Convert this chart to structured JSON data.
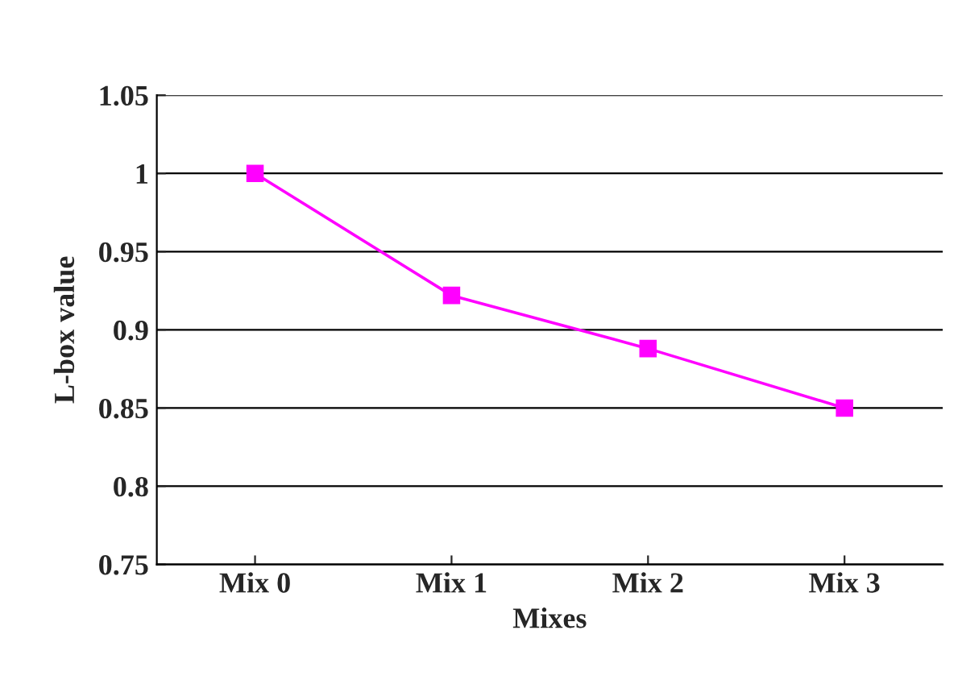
{
  "chart_data": {
    "type": "line",
    "xlabel": "Mixes",
    "ylabel": "L-box value",
    "categories": [
      "Mix 0",
      "Mix 1",
      "Mix 2",
      "Mix 3"
    ],
    "series": [
      {
        "color": "#ff00ff",
        "values": [
          1.0,
          0.922,
          0.888,
          0.85
        ]
      }
    ],
    "ylim": [
      0.75,
      1.05
    ],
    "yticks": [
      0.75,
      0.8,
      0.85,
      0.9,
      0.95,
      1,
      1.05
    ],
    "grid": "y",
    "marker": "square",
    "line_style": "solid",
    "legend": false
  }
}
